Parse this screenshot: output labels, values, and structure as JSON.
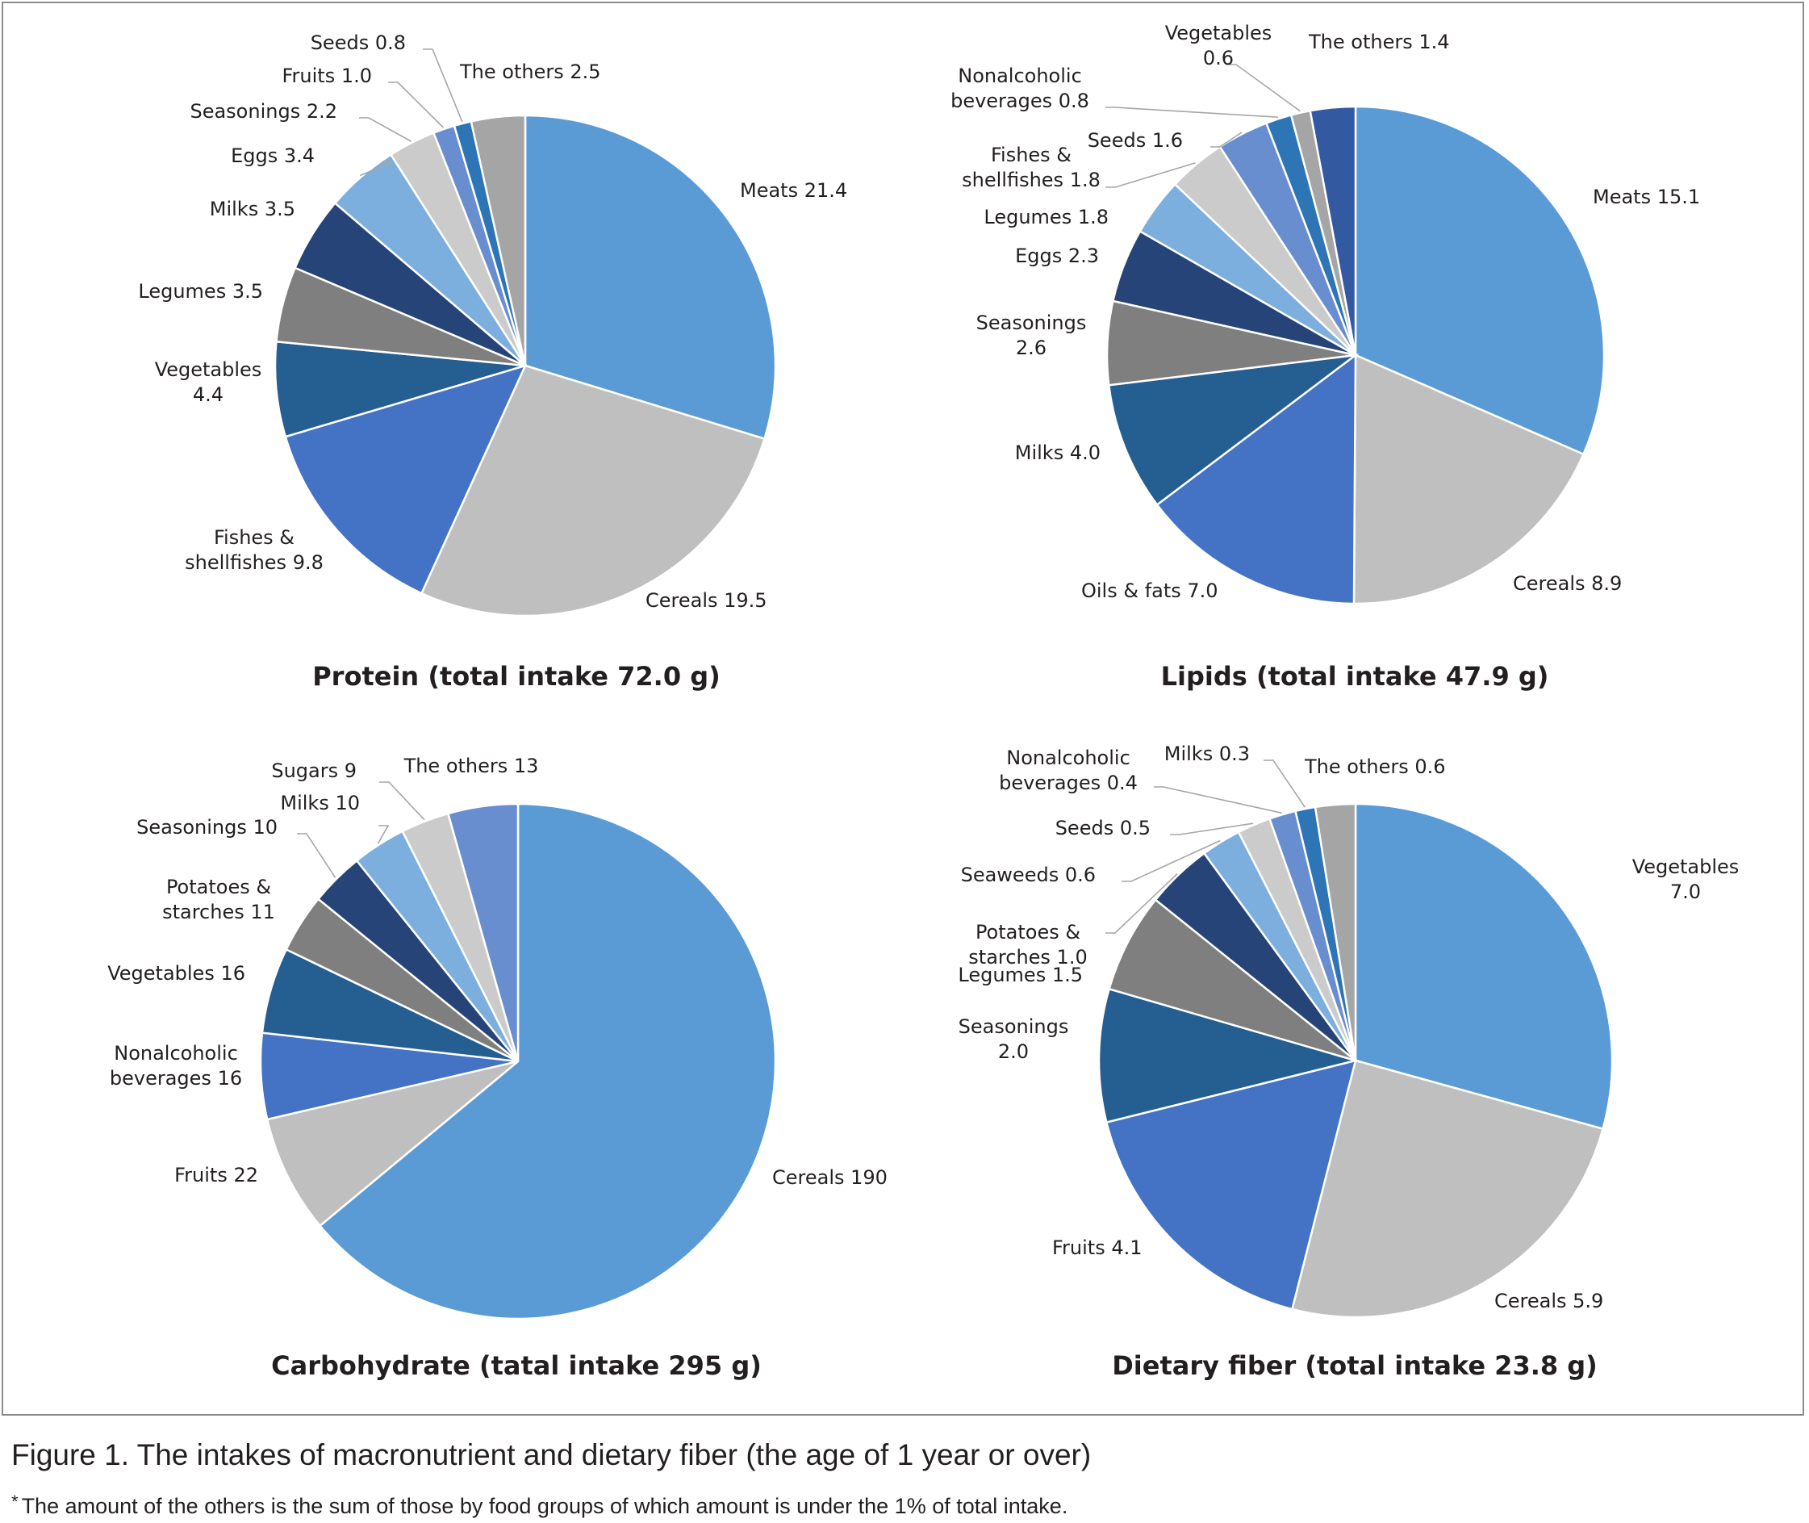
{
  "chart_data": [
    {
      "type": "pie",
      "title": "Protein (total intake 72.0 g)",
      "slices": [
        {
          "label": "Meats 21.4",
          "name": "Meats",
          "value": 21.4,
          "color": "#5b9bd5"
        },
        {
          "label": "Cereals 19.5",
          "name": "Cereals",
          "value": 19.5,
          "color": "#bfbfbf"
        },
        {
          "label": "Fishes & shellfishes 9.8",
          "name": "Fishes & shellfishes",
          "value": 9.8,
          "color": "#4472c4"
        },
        {
          "label": "Vegetables 4.4",
          "name": "Vegetables",
          "value": 4.4,
          "color": "#255e91"
        },
        {
          "label": "Legumes 3.5",
          "name": "Legumes",
          "value": 3.5,
          "color": "#7f7f7f"
        },
        {
          "label": "Milks 3.5",
          "name": "Milks",
          "value": 3.5,
          "color": "#264478"
        },
        {
          "label": "Eggs 3.4",
          "name": "Eggs",
          "value": 3.4,
          "color": "#7cafdd"
        },
        {
          "label": "Seasonings 2.2",
          "name": "Seasonings",
          "value": 2.2,
          "color": "#cbcbcb"
        },
        {
          "label": "Fruits 1.0",
          "name": "Fruits",
          "value": 1.0,
          "color": "#698ed0"
        },
        {
          "label": "Seeds 0.8",
          "name": "Seeds",
          "value": 0.8,
          "color": "#2e75b6"
        },
        {
          "label": "The others 2.5",
          "name": "The others",
          "value": 2.5,
          "color": "#a5a5a5"
        }
      ]
    },
    {
      "type": "pie",
      "title": "Lipids (total intake 47.9 g)",
      "slices": [
        {
          "label": "Meats 15.1",
          "name": "Meats",
          "value": 15.1,
          "color": "#5b9bd5"
        },
        {
          "label": "Cereals 8.9",
          "name": "Cereals",
          "value": 8.9,
          "color": "#bfbfbf"
        },
        {
          "label": "Oils & fats 7.0",
          "name": "Oils & fats",
          "value": 7.0,
          "color": "#4472c4"
        },
        {
          "label": "Milks 4.0",
          "name": "Milks",
          "value": 4.0,
          "color": "#255e91"
        },
        {
          "label": "Seasonings 2.6",
          "name": "Seasonings",
          "value": 2.6,
          "color": "#7f7f7f"
        },
        {
          "label": "Eggs 2.3",
          "name": "Eggs",
          "value": 2.3,
          "color": "#264478"
        },
        {
          "label": "Legumes 1.8",
          "name": "Legumes",
          "value": 1.8,
          "color": "#7cafdd"
        },
        {
          "label": "Fishes & shellfishes 1.8",
          "name": "Fishes & shellfishes",
          "value": 1.8,
          "color": "#cbcbcb"
        },
        {
          "label": "Seeds 1.6",
          "name": "Seeds",
          "value": 1.6,
          "color": "#698ed0"
        },
        {
          "label": "Nonalcoholic beverages 0.8",
          "name": "Nonalcoholic beverages",
          "value": 0.8,
          "color": "#2e75b6"
        },
        {
          "label": "Vegetables 0.6",
          "name": "Vegetables",
          "value": 0.6,
          "color": "#a5a5a5"
        },
        {
          "label": "The others 1.4",
          "name": "The others",
          "value": 1.4,
          "color": "#335aa1"
        }
      ]
    },
    {
      "type": "pie",
      "title": "Carbohydrate (tatal intake 295 g)",
      "slices": [
        {
          "label": "Cereals 190",
          "name": "Cereals",
          "value": 190,
          "color": "#5b9bd5"
        },
        {
          "label": "Fruits 22",
          "name": "Fruits",
          "value": 22,
          "color": "#bfbfbf"
        },
        {
          "label": "Nonalcoholic beverages 16",
          "name": "Nonalcoholic beverages",
          "value": 16,
          "color": "#4472c4"
        },
        {
          "label": "Vegetables 16",
          "name": "Vegetables",
          "value": 16,
          "color": "#255e91"
        },
        {
          "label": "Potatoes & starches 11",
          "name": "Potatoes & starches",
          "value": 11,
          "color": "#7f7f7f"
        },
        {
          "label": "Seasonings 10",
          "name": "Seasonings",
          "value": 10,
          "color": "#264478"
        },
        {
          "label": "Milks 10",
          "name": "Milks",
          "value": 10,
          "color": "#7cafdd"
        },
        {
          "label": "Sugars 9",
          "name": "Sugars",
          "value": 9,
          "color": "#cbcbcb"
        },
        {
          "label": "The others 13",
          "name": "The others",
          "value": 13,
          "color": "#698ed0"
        }
      ]
    },
    {
      "type": "pie",
      "title": "Dietary fiber (total intake 23.8 g)",
      "slices": [
        {
          "label": "Vegetables 7.0",
          "name": "Vegetables",
          "value": 7.0,
          "color": "#5b9bd5"
        },
        {
          "label": "Cereals 5.9",
          "name": "Cereals",
          "value": 5.9,
          "color": "#bfbfbf"
        },
        {
          "label": "Fruits 4.1",
          "name": "Fruits",
          "value": 4.1,
          "color": "#4472c4"
        },
        {
          "label": "Seasonings 2.0",
          "name": "Seasonings",
          "value": 2.0,
          "color": "#255e91"
        },
        {
          "label": "Legumes 1.5",
          "name": "Legumes",
          "value": 1.5,
          "color": "#7f7f7f"
        },
        {
          "label": "Potatoes & starches 1.0",
          "name": "Potatoes & starches",
          "value": 1.0,
          "color": "#264478"
        },
        {
          "label": "Seaweeds 0.6",
          "name": "Seaweeds",
          "value": 0.6,
          "color": "#7cafdd"
        },
        {
          "label": "Seeds 0.5",
          "name": "Seeds",
          "value": 0.5,
          "color": "#cbcbcb"
        },
        {
          "label": "Nonalcoholic beverages 0.4",
          "name": "Nonalcoholic beverages",
          "value": 0.4,
          "color": "#698ed0"
        },
        {
          "label": "Milks 0.3",
          "name": "Milks",
          "value": 0.3,
          "color": "#2e75b6"
        },
        {
          "label": "The others 0.6",
          "name": "The others",
          "value": 0.6,
          "color": "#a5a5a5"
        }
      ]
    }
  ],
  "caption": "Figure 1. The intakes of macronutrient and dietary fiber (the age of 1 year or over)",
  "footnote": {
    "marker": "*",
    "text": "The amount of the others is the sum of those by food groups of which amount is under the 1% of total intake."
  }
}
